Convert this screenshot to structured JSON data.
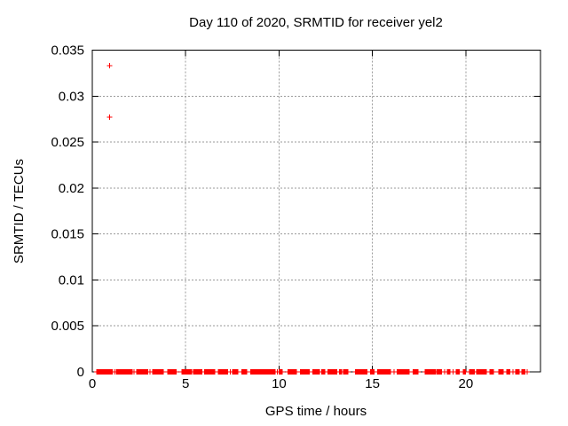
{
  "window": {
    "background": "#ffffff"
  },
  "chart_data": {
    "type": "scatter",
    "title": "Day 110 of 2020, SRMTID for receiver yel2",
    "xlabel": "GPS time / hours",
    "ylabel": "SRMTID / TECUs",
    "xlim": [
      0,
      24
    ],
    "ylim": [
      0,
      0.035
    ],
    "xticks": {
      "values": [
        0,
        5,
        10,
        15,
        20
      ],
      "labels": [
        "0",
        "5",
        "10",
        "15",
        "20"
      ]
    },
    "yticks": {
      "values": [
        0,
        0.005,
        0.01,
        0.015,
        0.02,
        0.025,
        0.03,
        0.035
      ],
      "labels": [
        "0",
        "0.005",
        "0.01",
        "0.015",
        "0.02",
        "0.025",
        "0.03",
        "0.035"
      ]
    },
    "grid": true,
    "grid_style": "dashed",
    "legend": "none",
    "colors": {
      "marker": "#ff0000",
      "grid": "#9a9a9a",
      "frame": "#000000",
      "text": "#000000"
    },
    "series": [
      {
        "name": "SRMTID",
        "marker": "plus",
        "marker_size_px": 7,
        "color": "#ff0000",
        "outlier_points": [
          {
            "x": 0.93,
            "y": 0.0333
          },
          {
            "x": 0.93,
            "y": 0.0277
          }
        ],
        "baseline_value": 0.0,
        "baseline_segments": [
          [
            0.24,
            1.1
          ],
          [
            1.29,
            2.14
          ],
          [
            2.38,
            3.0
          ],
          [
            3.24,
            3.81
          ],
          [
            4.05,
            4.52
          ],
          [
            4.81,
            5.29
          ],
          [
            5.43,
            5.9
          ],
          [
            6.0,
            6.57
          ],
          [
            6.76,
            7.24
          ],
          [
            7.52,
            7.81
          ],
          [
            8.0,
            8.29
          ],
          [
            8.48,
            9.81
          ],
          [
            10.0,
            10.19
          ],
          [
            10.48,
            10.95
          ],
          [
            11.14,
            11.62
          ],
          [
            11.81,
            12.19
          ],
          [
            12.29,
            12.48
          ],
          [
            12.62,
            13.1
          ],
          [
            13.24,
            13.33
          ],
          [
            13.48,
            13.71
          ],
          [
            14.1,
            14.71
          ],
          [
            14.9,
            15.1
          ],
          [
            15.29,
            16.0
          ],
          [
            16.33,
            17.0
          ],
          [
            17.19,
            17.43
          ],
          [
            17.81,
            18.4
          ],
          [
            18.43,
            18.71
          ],
          [
            19.0,
            19.19
          ],
          [
            19.48,
            19.67
          ],
          [
            19.86,
            20.0
          ],
          [
            20.19,
            20.48
          ],
          [
            20.57,
            21.1
          ],
          [
            21.29,
            21.52
          ],
          [
            21.76,
            22.0
          ],
          [
            22.19,
            22.38
          ],
          [
            22.67,
            22.9
          ],
          [
            23.0,
            23.19
          ]
        ],
        "baseline_singles": [
          1.19,
          2.24,
          3.1,
          5.36,
          7.38,
          9.9,
          13.4,
          16.17,
          18.86,
          19.33,
          22.52,
          23.29
        ],
        "baseline_point_step_hours": 0.04
      }
    ]
  }
}
